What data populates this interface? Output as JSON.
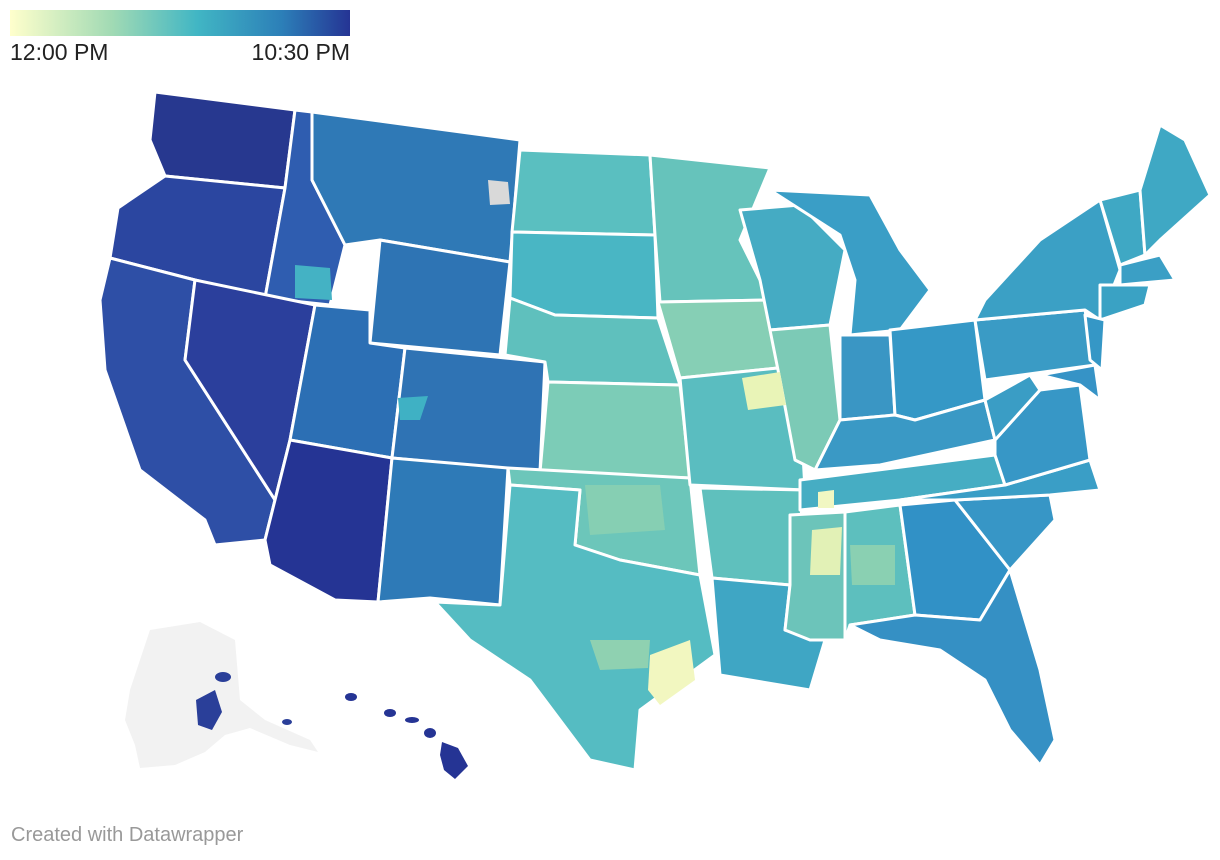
{
  "legend": {
    "min_label": "12:00 PM",
    "max_label": "10:30 PM",
    "gradient": [
      "#ffffcc",
      "#a1dab4",
      "#41b6c4",
      "#2c7fb8",
      "#253494"
    ]
  },
  "colors": {
    "state_border": "#ffffff",
    "alaska": "#f2f2f2",
    "no_data": "#d9d9d9"
  },
  "footer": {
    "credit": "Created with Datawrapper"
  }
}
